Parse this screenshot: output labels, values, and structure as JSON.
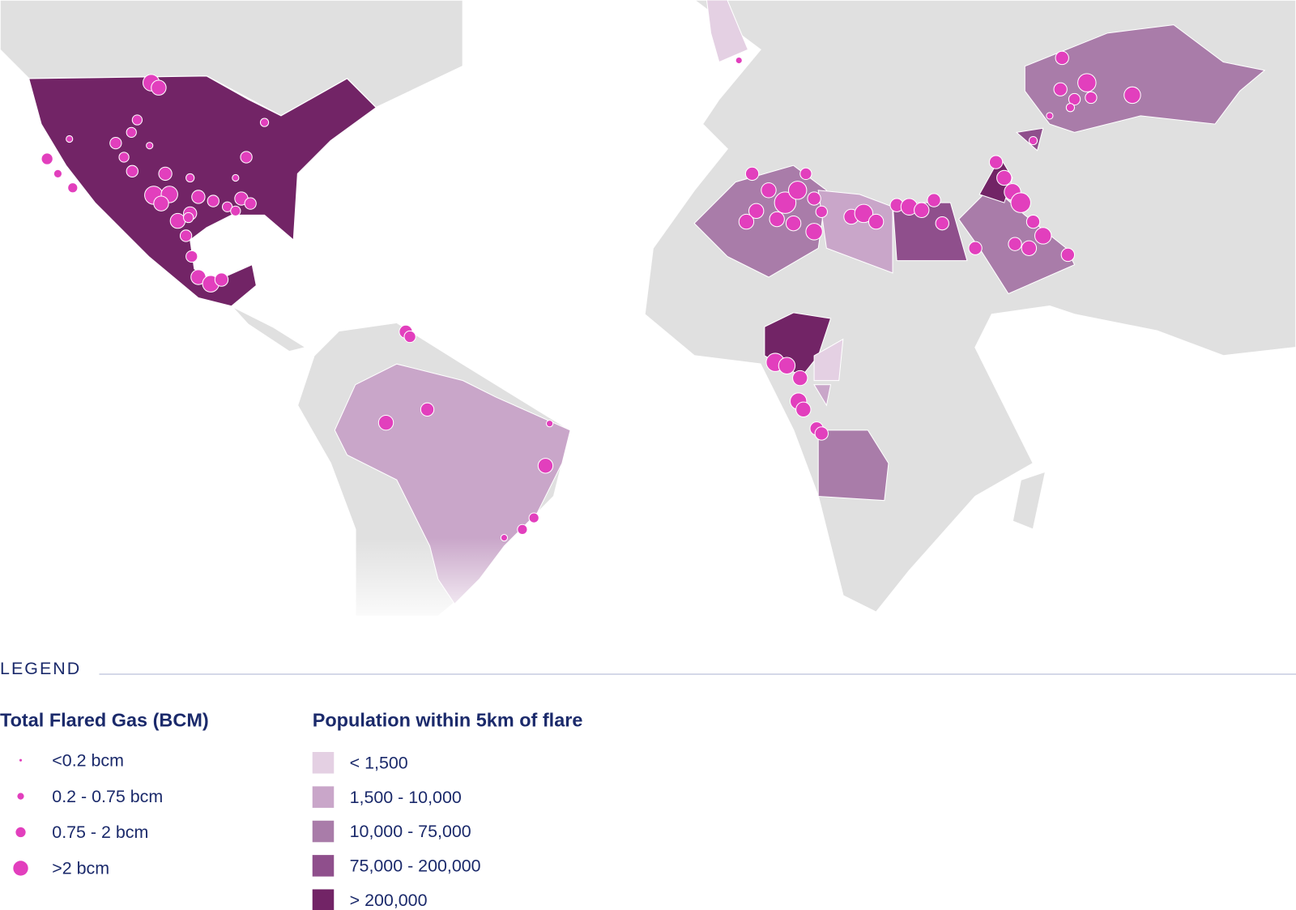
{
  "legend": {
    "title": "LEGEND",
    "flared_gas": {
      "title": "Total Flared Gas (BCM)",
      "items": [
        "<0.2 bcm",
        "0.2 - 0.75 bcm",
        "0.75 - 2 bcm",
        ">2 bcm"
      ],
      "color": "#e23fbd"
    },
    "population": {
      "title": "Population within 5km of flare",
      "items": [
        {
          "label": "< 1,500",
          "color": "#e4d0e3"
        },
        {
          "label": "1,500 - 10,000",
          "color": "#c9a6c9"
        },
        {
          "label": "10,000 - 75,000",
          "color": "#a97ca9"
        },
        {
          "label": "75,000 - 200,000",
          "color": "#8f4f8c"
        },
        {
          "label": "> 200,000",
          "color": "#722466"
        }
      ]
    }
  }
}
